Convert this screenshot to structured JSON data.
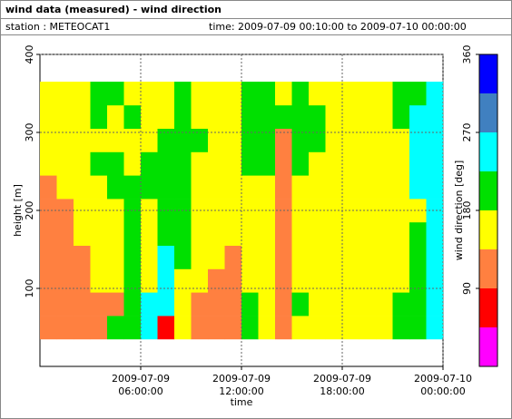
{
  "header": {
    "title": "wind data (measured) - wind direction",
    "station": "station : METEOCAT1",
    "time": "time: 2009-07-09 00:10:00 to 2009-07-10 00:00:00"
  },
  "chart_data": {
    "type": "heatmap",
    "xlabel": "time",
    "ylabel": "height [m]",
    "xlim": [
      0,
      24
    ],
    "ylim": [
      0,
      400
    ],
    "xticks": [
      {
        "value": 6,
        "label": [
          "2009-07-09",
          "06:00:00"
        ]
      },
      {
        "value": 12,
        "label": [
          "2009-07-09",
          "12:00:00"
        ]
      },
      {
        "value": 18,
        "label": [
          "2009-07-09",
          "18:00:00"
        ]
      },
      {
        "value": 24,
        "label": [
          "2009-07-10",
          "00:00:00"
        ]
      }
    ],
    "yticks": [
      100,
      200,
      300,
      400
    ],
    "grid": true,
    "x": [
      0.5,
      1.5,
      2.5,
      3.5,
      4.5,
      5.5,
      6.5,
      7.5,
      8.5,
      9.5,
      10.5,
      11.5,
      12.5,
      13.5,
      14.5,
      15.5,
      16.5,
      17.5,
      18.5,
      19.5,
      20.5,
      21.5,
      22.5,
      23.5
    ],
    "y": [
      50,
      80,
      110,
      140,
      170,
      200,
      230,
      260,
      290,
      320,
      350
    ],
    "values": [
      [
        120,
        120,
        120,
        120,
        120,
        120,
        120,
        160,
        160,
        160,
        160
      ],
      [
        120,
        120,
        120,
        120,
        120,
        120,
        160,
        160,
        160,
        160,
        160
      ],
      [
        120,
        120,
        120,
        120,
        160,
        160,
        160,
        160,
        160,
        160,
        160
      ],
      [
        120,
        120,
        160,
        160,
        160,
        160,
        160,
        200,
        160,
        200,
        200
      ],
      [
        200,
        120,
        160,
        160,
        160,
        160,
        200,
        200,
        160,
        160,
        200
      ],
      [
        200,
        200,
        200,
        200,
        200,
        200,
        200,
        160,
        160,
        200,
        160
      ],
      [
        240,
        240,
        160,
        160,
        160,
        160,
        200,
        200,
        160,
        160,
        160
      ],
      [
        70,
        240,
        240,
        240,
        200,
        200,
        200,
        200,
        200,
        160,
        160
      ],
      [
        160,
        160,
        160,
        200,
        200,
        200,
        200,
        200,
        200,
        200,
        200
      ],
      [
        120,
        120,
        160,
        160,
        160,
        160,
        160,
        160,
        200,
        160,
        160
      ],
      [
        120,
        120,
        120,
        160,
        160,
        160,
        160,
        160,
        160,
        160,
        160
      ],
      [
        120,
        120,
        120,
        120,
        160,
        160,
        160,
        160,
        160,
        160,
        160
      ],
      [
        200,
        200,
        160,
        160,
        160,
        160,
        160,
        200,
        200,
        200,
        200
      ],
      [
        160,
        160,
        160,
        160,
        160,
        160,
        160,
        200,
        200,
        200,
        200
      ],
      [
        120,
        120,
        120,
        120,
        120,
        120,
        120,
        120,
        120,
        200,
        160
      ],
      [
        160,
        200,
        160,
        160,
        160,
        160,
        160,
        200,
        200,
        200,
        200
      ],
      [
        160,
        160,
        160,
        160,
        160,
        160,
        160,
        160,
        200,
        200,
        160
      ],
      [
        160,
        160,
        160,
        160,
        160,
        160,
        160,
        160,
        160,
        160,
        160
      ],
      [
        160,
        160,
        160,
        160,
        160,
        160,
        160,
        160,
        160,
        160,
        160
      ],
      [
        160,
        160,
        160,
        160,
        160,
        160,
        160,
        160,
        160,
        160,
        160
      ],
      [
        160,
        160,
        160,
        160,
        160,
        160,
        160,
        160,
        160,
        160,
        160
      ],
      [
        200,
        200,
        160,
        160,
        160,
        160,
        160,
        160,
        160,
        200,
        200
      ],
      [
        200,
        200,
        200,
        200,
        200,
        160,
        240,
        240,
        240,
        240,
        200
      ],
      [
        240,
        240,
        240,
        240,
        240,
        240,
        240,
        240,
        240,
        240,
        240
      ]
    ],
    "colorbar": {
      "label": "wind direction [deg]",
      "bounds": [
        0,
        45,
        90,
        135,
        180,
        225,
        270,
        315,
        360
      ],
      "colors": [
        "#ff00ff",
        "#ff0000",
        "#ff8040",
        "#ffff00",
        "#00e000",
        "#00ffff",
        "#4080c0",
        "#0000ff"
      ],
      "ticks": [
        90,
        180,
        270,
        360
      ]
    }
  }
}
